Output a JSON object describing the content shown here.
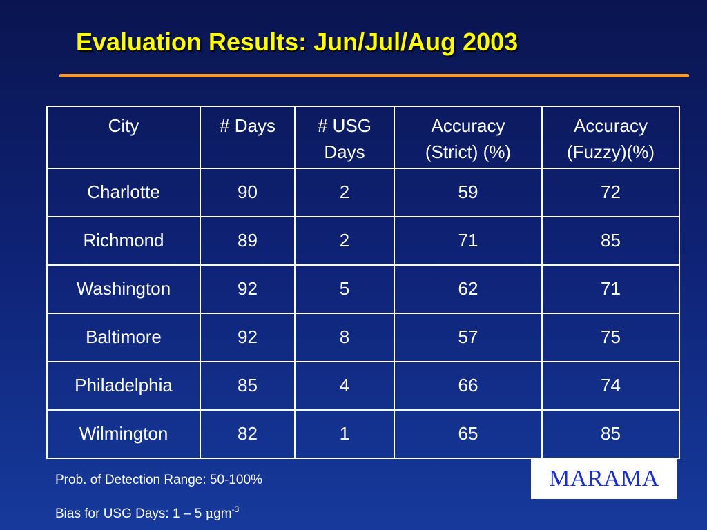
{
  "slide": {
    "title": "Evaluation Results: Jun/Jul/Aug 2003"
  },
  "table": {
    "headers": [
      [
        "City"
      ],
      [
        "# Days"
      ],
      [
        "# USG",
        "Days"
      ],
      [
        "Accuracy",
        "(Strict) (%)"
      ],
      [
        "Accuracy",
        "(Fuzzy)(%)"
      ]
    ],
    "rows": [
      [
        "Charlotte",
        "90",
        "2",
        "59",
        "72"
      ],
      [
        "Richmond",
        "89",
        "2",
        "71",
        "85"
      ],
      [
        "Washington",
        "92",
        "5",
        "62",
        "71"
      ],
      [
        "Baltimore",
        "92",
        "8",
        "57",
        "75"
      ],
      [
        "Philadelphia",
        "85",
        "4",
        "66",
        "74"
      ],
      [
        "Wilmington",
        "82",
        "1",
        "65",
        "85"
      ]
    ]
  },
  "notes": {
    "detection": "Prob. of Detection Range: 50-100%",
    "bias_prefix": "Bias for USG Days: 1 – 5 ",
    "bias_mu": "μ",
    "bias_unit": "gm",
    "bias_exponent": "-3"
  },
  "logo": {
    "text": "MARAMA"
  },
  "colors": {
    "title": "#ffff00",
    "rule": "#f39a33",
    "background_top": "#0a1550",
    "background_bottom": "#163a9c",
    "logo_text": "#1c2ec8"
  }
}
